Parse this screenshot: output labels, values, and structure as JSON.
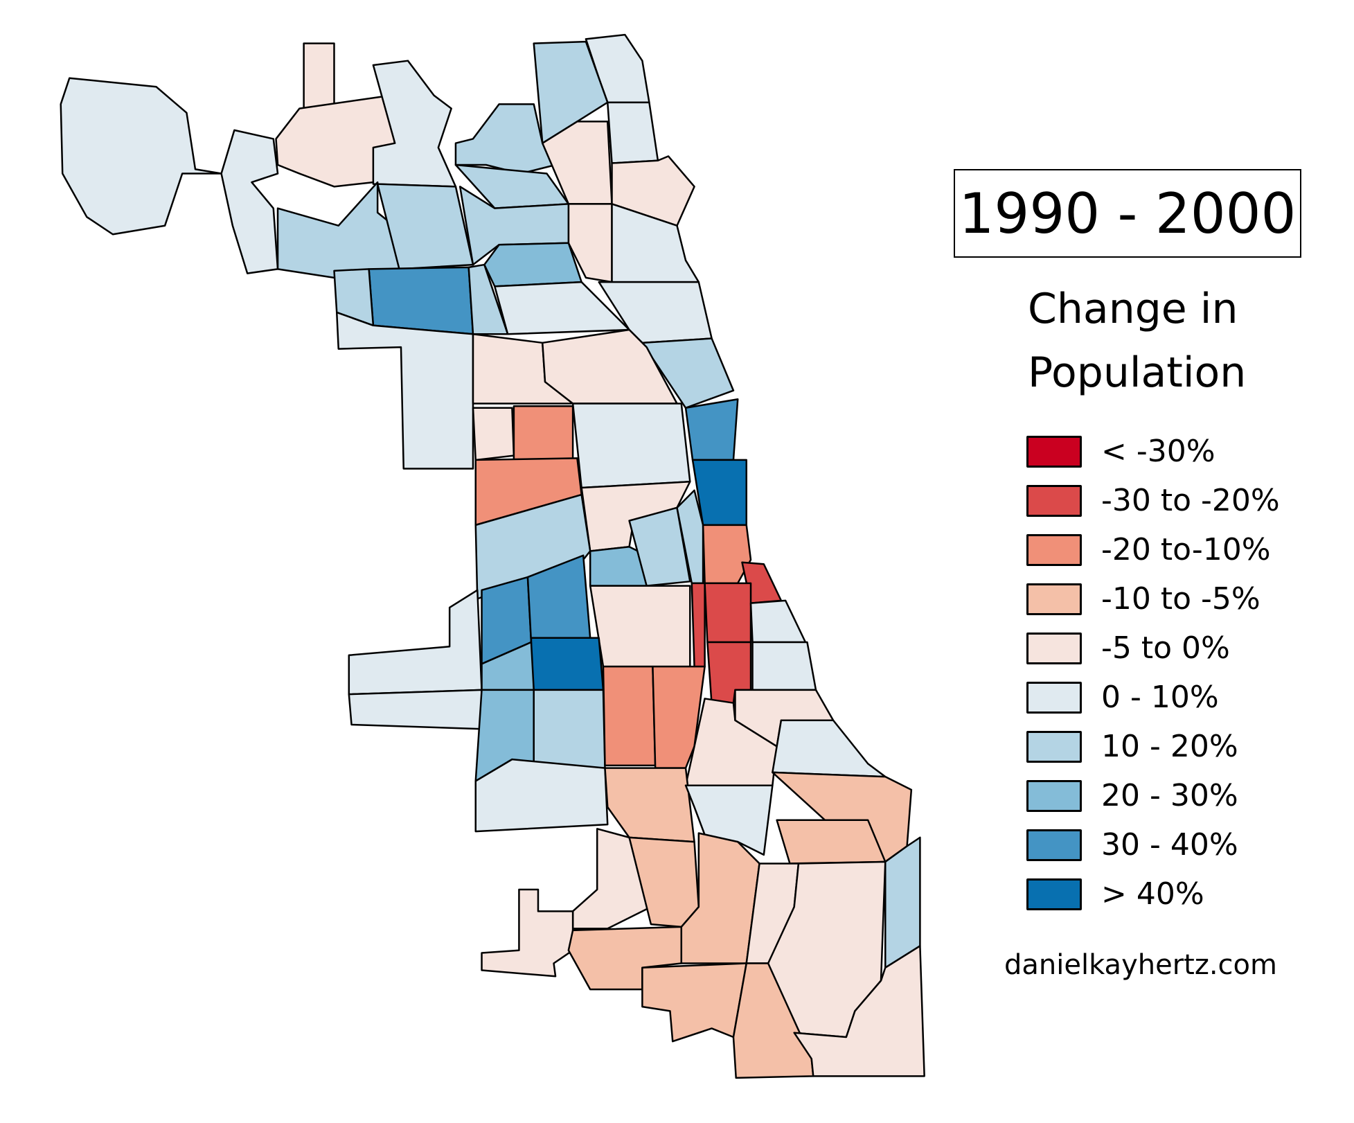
{
  "title": "1990 - 2000",
  "legend": {
    "title_line1": "Change in",
    "title_line2": "Population",
    "items": [
      {
        "label": "< -30%",
        "color": "#ca0020"
      },
      {
        "label": "-30 to -20%",
        "color": "#db4a4a"
      },
      {
        "label": "-20 to-10%",
        "color": "#f09078"
      },
      {
        "label": "-10 to -5%",
        "color": "#f4c0a8"
      },
      {
        "label": "-5 to 0%",
        "color": "#f6e4de"
      },
      {
        "label": "0 - 10%",
        "color": "#e0eaf0"
      },
      {
        "label": "10 - 20%",
        "color": "#b4d4e4"
      },
      {
        "label": "20 - 30%",
        "color": "#84bcd8"
      },
      {
        "label": "30 - 40%",
        "color": "#4494c4"
      },
      {
        "label": "> 40%",
        "color": "#0870b0"
      }
    ]
  },
  "credit": "danielkayhertz.com",
  "chart_data": {
    "type": "choropleth",
    "title": "1990 - 2000",
    "subtitle": "Change in Population",
    "area_classes": [
      5,
      5,
      4,
      4,
      5,
      6,
      6,
      5,
      6,
      6,
      6,
      5,
      4,
      4,
      4,
      5,
      6,
      7,
      8,
      6,
      6,
      5,
      5,
      5,
      6,
      4,
      4,
      8,
      9,
      4,
      2,
      2,
      5,
      4,
      6,
      7,
      6,
      6,
      2,
      1,
      4,
      1,
      1,
      5,
      1,
      5,
      8,
      8,
      9,
      5,
      5,
      7,
      7,
      6,
      2,
      2,
      4,
      4,
      5,
      5,
      3,
      5,
      3,
      3,
      4,
      3,
      3,
      4,
      4,
      6,
      4,
      3,
      3,
      3,
      4
    ]
  }
}
